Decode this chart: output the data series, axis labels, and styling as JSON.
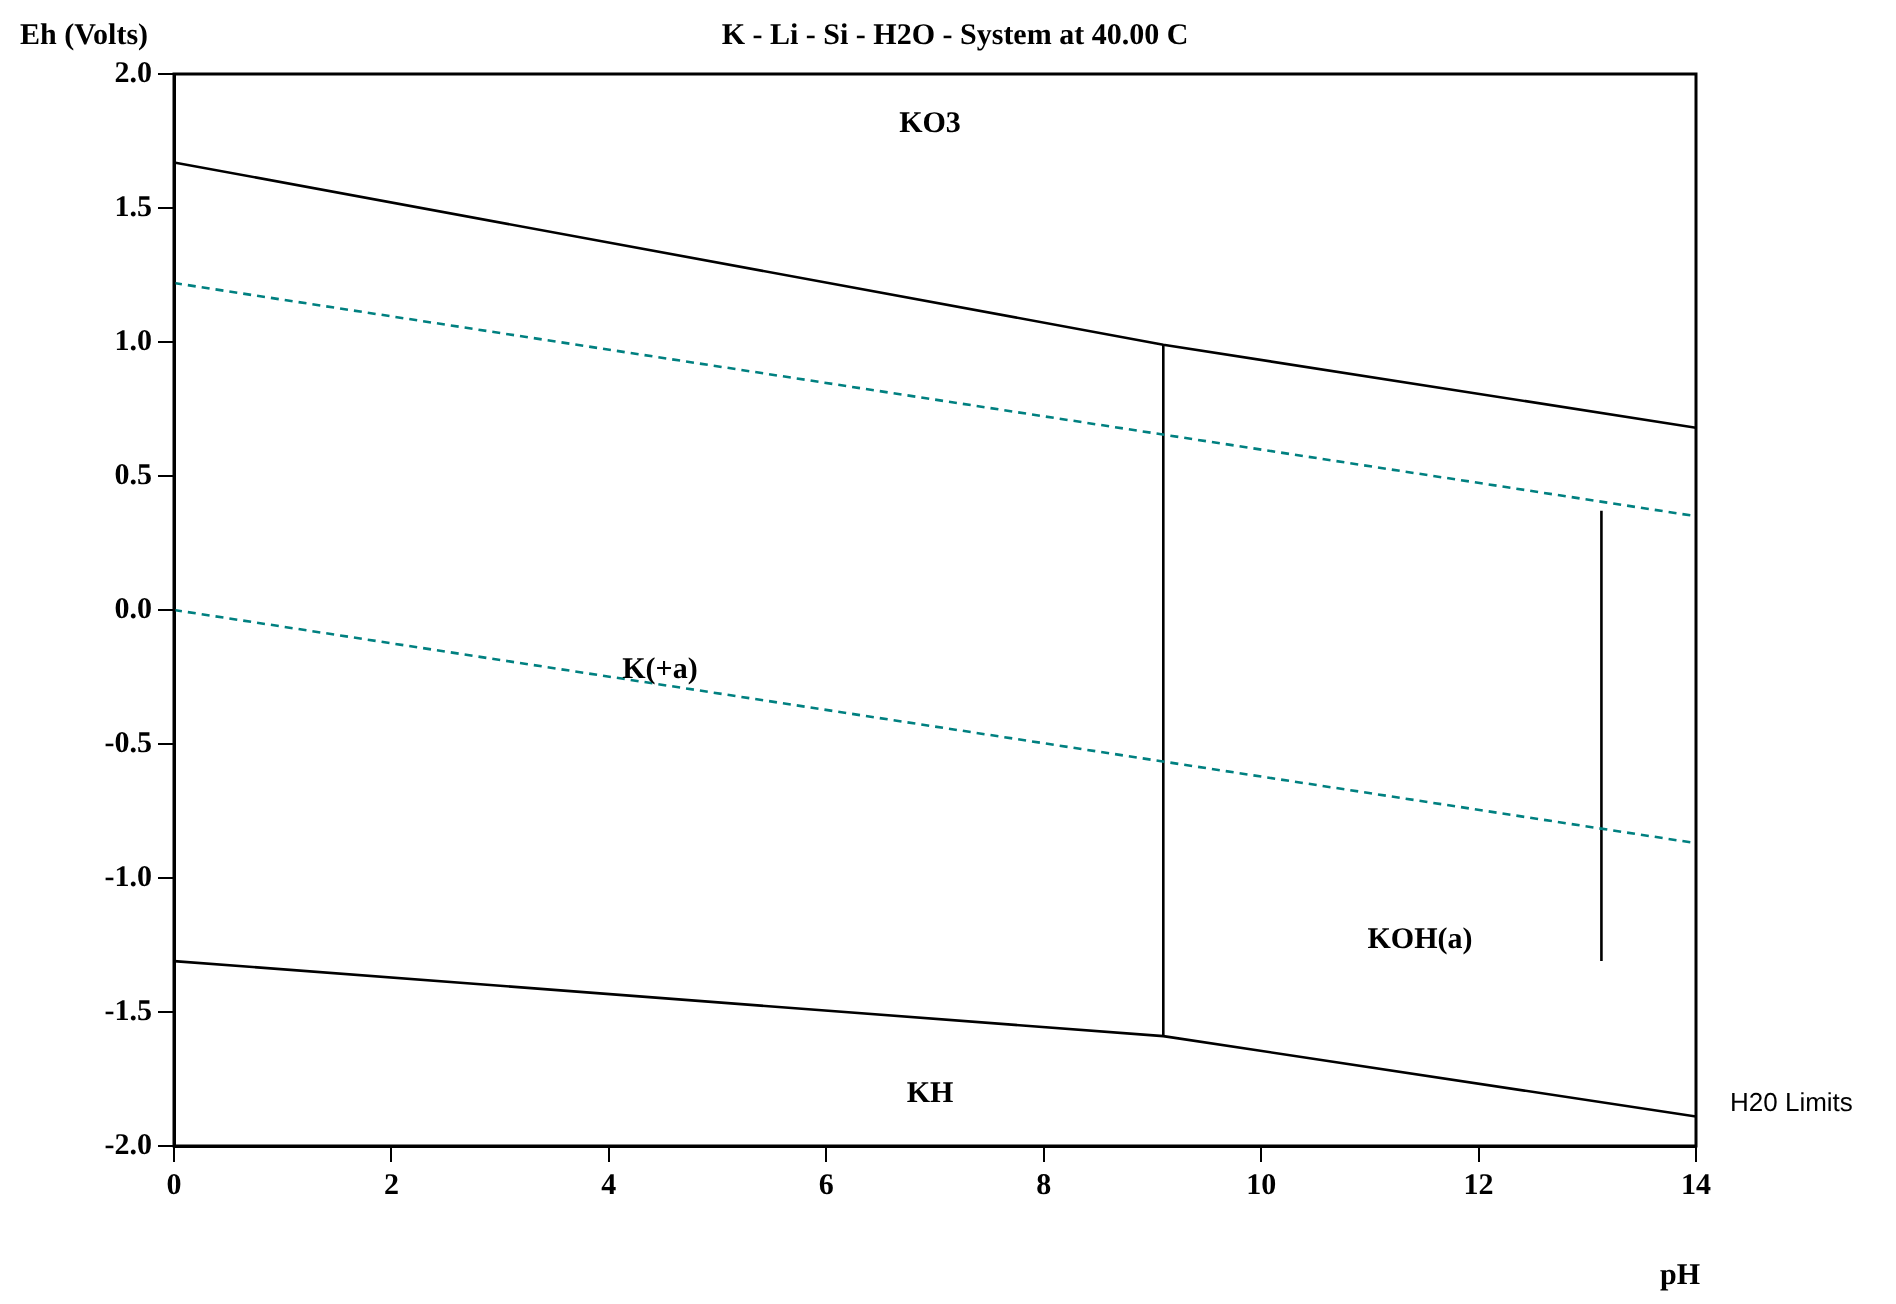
{
  "chart_data": {
    "type": "line",
    "title": "K - Li - Si - H2O - System at 40.00 C",
    "xlabel": "pH",
    "ylabel": "Eh (Volts)",
    "xlim": [
      0,
      14
    ],
    "xticks": [
      0,
      2,
      4,
      6,
      8,
      10,
      12,
      14
    ],
    "ylim": [
      -2,
      2
    ],
    "yticks": [
      {
        "value": -2,
        "label": "-2.0"
      },
      {
        "value": -1.5,
        "label": "-1.5"
      },
      {
        "value": -1,
        "label": "-1.0"
      },
      {
        "value": -0.5,
        "label": "-0.5"
      },
      {
        "value": 0,
        "label": "0.0"
      },
      {
        "value": 0.5,
        "label": "0.5"
      },
      {
        "value": 1,
        "label": "1.0"
      },
      {
        "value": 1.5,
        "label": "1.5"
      },
      {
        "value": 2,
        "label": "2.0"
      }
    ],
    "grid": false,
    "legend": false,
    "marker": "none",
    "series": [
      {
        "color": "#000000",
        "line_style": "solid",
        "x": [
          0,
          9.1,
          14
        ],
        "values": [
          1.67,
          0.99,
          0.68
        ]
      },
      {
        "color": "#008080",
        "line_style": "dashed",
        "x": [
          0,
          14
        ],
        "values": [
          1.22,
          0.35
        ]
      },
      {
        "color": "#008080",
        "line_style": "dashed",
        "x": [
          0,
          14
        ],
        "values": [
          0,
          -0.87
        ]
      },
      {
        "color": "#000000",
        "line_style": "solid",
        "x": [
          0,
          9.1,
          14
        ],
        "values": [
          -1.31,
          -1.59,
          -1.89
        ]
      },
      {
        "color": "#000000",
        "line_style": "solid",
        "x": [
          9.1,
          9.1
        ],
        "values": [
          -1.59,
          0.99
        ]
      },
      {
        "color": "#000000",
        "line_style": "solid",
        "x": [
          13.13,
          13.13
        ],
        "values": [
          -1.31,
          0.37
        ]
      }
    ],
    "annotations": [
      "KO3",
      "K(+a)",
      "KOH(a)",
      "KH",
      "H20 Limits"
    ]
  }
}
